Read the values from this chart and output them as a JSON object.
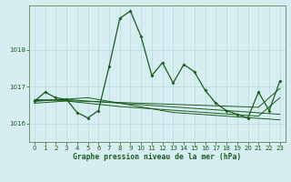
{
  "title": "Graphe pression niveau de la mer (hPa)",
  "bg_color": "#d6eef2",
  "line_color": "#1a5c1a",
  "grid_color": "#b8d8dc",
  "ylim": [
    1015.5,
    1019.2
  ],
  "yticks": [
    1016,
    1017,
    1018
  ],
  "xlim": [
    -0.5,
    23.5
  ],
  "xticks": [
    0,
    1,
    2,
    3,
    4,
    5,
    6,
    7,
    8,
    9,
    10,
    11,
    12,
    13,
    14,
    15,
    16,
    17,
    18,
    19,
    20,
    21,
    22,
    23
  ],
  "series_main": [
    1016.6,
    1016.85,
    1016.7,
    1016.65,
    1016.3,
    1016.15,
    1016.35,
    1017.55,
    1018.85,
    1019.05,
    1018.35,
    1017.3,
    1017.65,
    1017.1,
    1017.6,
    1017.4,
    1016.9,
    1016.55,
    1016.35,
    1016.25,
    1016.15,
    1016.85,
    1016.35,
    1017.15
  ],
  "series_flat": [
    [
      1016.6,
      1016.62,
      1016.64,
      1016.66,
      1016.68,
      1016.7,
      1016.65,
      1016.6,
      1016.55,
      1016.5,
      1016.45,
      1016.4,
      1016.35,
      1016.3,
      1016.28,
      1016.26,
      1016.24,
      1016.22,
      1016.2,
      1016.18,
      1016.16,
      1016.14,
      1016.12,
      1016.1
    ],
    [
      1016.62,
      1016.63,
      1016.64,
      1016.65,
      1016.63,
      1016.61,
      1016.59,
      1016.57,
      1016.55,
      1016.53,
      1016.51,
      1016.49,
      1016.47,
      1016.45,
      1016.43,
      1016.41,
      1016.39,
      1016.37,
      1016.35,
      1016.33,
      1016.31,
      1016.29,
      1016.27,
      1016.25
    ],
    [
      1016.55,
      1016.57,
      1016.59,
      1016.61,
      1016.58,
      1016.55,
      1016.52,
      1016.49,
      1016.46,
      1016.44,
      1016.42,
      1016.4,
      1016.38,
      1016.36,
      1016.34,
      1016.32,
      1016.3,
      1016.28,
      1016.26,
      1016.24,
      1016.22,
      1016.2,
      1016.45,
      1016.7
    ],
    [
      1016.65,
      1016.64,
      1016.63,
      1016.62,
      1016.61,
      1016.6,
      1016.59,
      1016.58,
      1016.57,
      1016.56,
      1016.55,
      1016.54,
      1016.53,
      1016.52,
      1016.51,
      1016.5,
      1016.49,
      1016.48,
      1016.47,
      1016.46,
      1016.45,
      1016.44,
      1016.7,
      1016.95
    ]
  ]
}
